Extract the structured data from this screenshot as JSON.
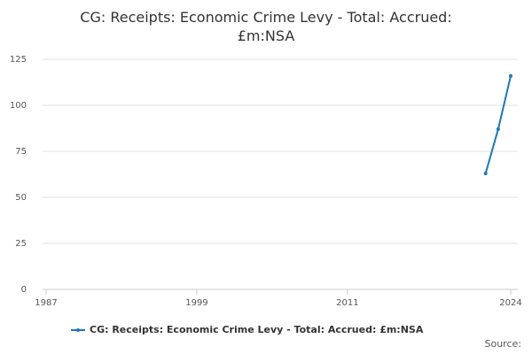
{
  "chart_data": {
    "type": "line",
    "title": "CG: Receipts: Economic Crime Levy - Total: Accrued: £m:NSA",
    "x": [
      2022,
      2023,
      2024
    ],
    "series": [
      {
        "name": "CG: Receipts: Economic Crime Levy - Total: Accrued: £m:NSA",
        "color": "#1f78b4",
        "values": [
          63,
          87,
          116
        ]
      }
    ],
    "xlim": [
      1987,
      2024
    ],
    "xticks": [
      1987,
      1999,
      2011,
      2024
    ],
    "ylim": [
      0,
      125
    ],
    "yticks": [
      0,
      25,
      50,
      75,
      100,
      125
    ],
    "grid": true,
    "legend": "bottom",
    "source": "Source:"
  }
}
